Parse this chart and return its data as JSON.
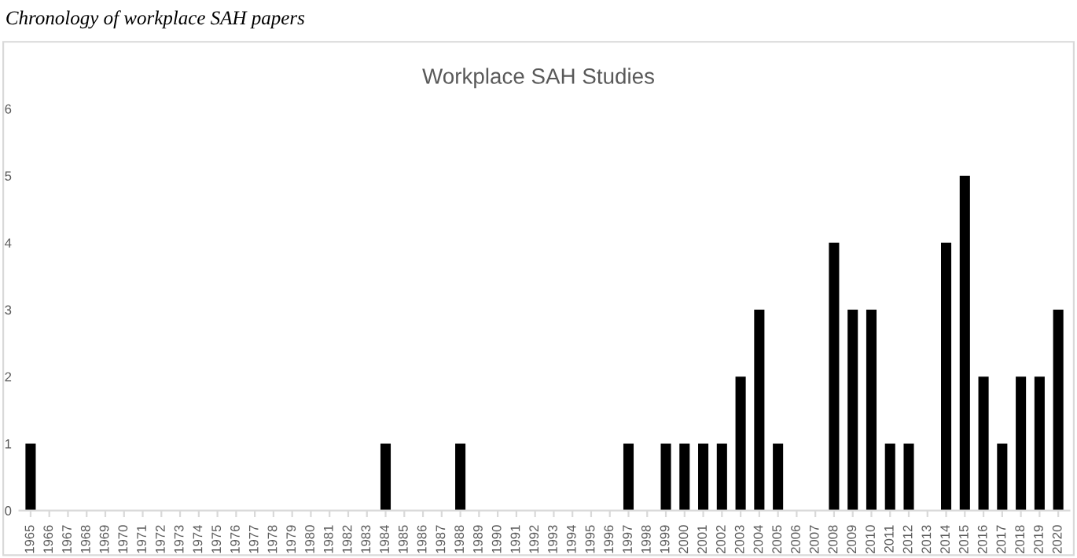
{
  "chart_data": {
    "type": "bar",
    "title": "Workplace SAH Studies",
    "annotations": [
      "Chronology of workplace SAH papers"
    ],
    "categories": [
      "1965",
      "1966",
      "1967",
      "1968",
      "1969",
      "1970",
      "1971",
      "1972",
      "1973",
      "1974",
      "1975",
      "1976",
      "1977",
      "1978",
      "1979",
      "1980",
      "1981",
      "1982",
      "1983",
      "1984",
      "1985",
      "1986",
      "1987",
      "1988",
      "1989",
      "1990",
      "1991",
      "1992",
      "1993",
      "1994",
      "1995",
      "1996",
      "1997",
      "1998",
      "1999",
      "2000",
      "2001",
      "2002",
      "2003",
      "2004",
      "2005",
      "2006",
      "2007",
      "2008",
      "2009",
      "2010",
      "2011",
      "2012",
      "2013",
      "2014",
      "2015",
      "2016",
      "2017",
      "2018",
      "2019",
      "2020"
    ],
    "values": [
      1,
      0,
      0,
      0,
      0,
      0,
      0,
      0,
      0,
      0,
      0,
      0,
      0,
      0,
      0,
      0,
      0,
      0,
      0,
      1,
      0,
      0,
      0,
      1,
      0,
      0,
      0,
      0,
      0,
      0,
      0,
      0,
      1,
      0,
      1,
      1,
      1,
      1,
      2,
      3,
      1,
      0,
      0,
      4,
      3,
      3,
      1,
      1,
      0,
      4,
      5,
      2,
      1,
      2,
      2,
      3
    ],
    "color": "#000000",
    "ylim": [
      0,
      6
    ],
    "yticks": [
      0,
      1,
      2,
      3,
      4,
      5,
      6
    ],
    "grid": false,
    "legend": false
  }
}
